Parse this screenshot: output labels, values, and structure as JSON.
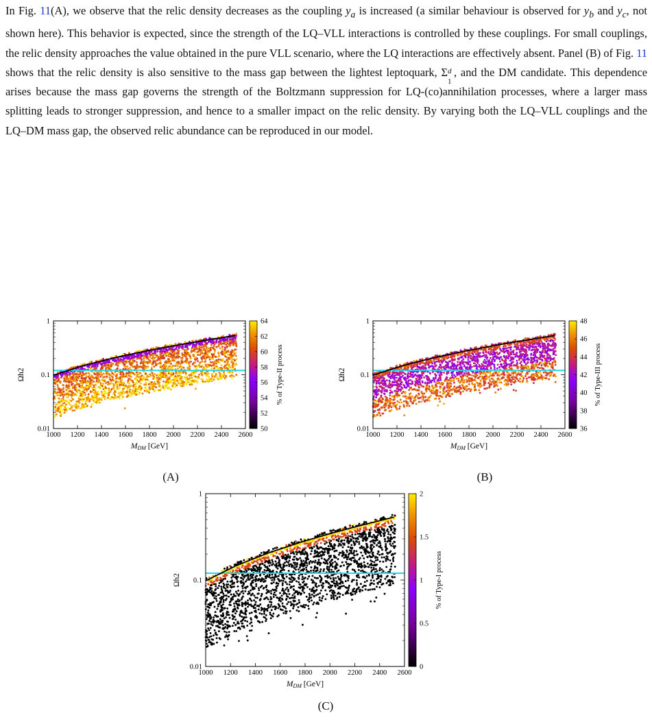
{
  "paragraph": {
    "s1": "In Fig. ",
    "ref1": "11",
    "s2": "(A), we observe that the relic density decreases as the coupling ",
    "ya": "y",
    "ya_sub": "a",
    "s3": " is increased (a similar behaviour is observed for ",
    "yb": "y",
    "yb_sub": "b",
    "s4": " and ",
    "yc": "y",
    "yc_sub": "c",
    "s5": ", not shown here). This behavior is expected, since the strength of the LQ–VLL interactions is controlled by these couplings. For small couplings, the relic density approaches the value obtained in the pure VLL scenario, where the LQ interactions are effectively absent. Panel (B) of Fig. ",
    "ref2": "11",
    "s6": " shows that the relic density is also sensitive to the mass gap between the lightest leptoquark, ",
    "sigma": "Σ",
    "sigma_sup": "d",
    "sigma_sub": "1",
    "s7": ", and the DM candidate. This dependence arises because the mass gap governs the strength of the Boltzmann suppression for LQ-(co)annihilation processes, where a larger mass splitting leads to stronger suppression, and hence to a smaller impact on the relic density. By varying both the LQ–VLL couplings and the LQ–DM mass gap, the observed relic abundance can be reproduced in our model."
  },
  "chart_data": [
    {
      "type": "scatter",
      "panel": "(A)",
      "xlabel_main": "M",
      "xlabel_sub": "DM",
      "xlabel_unit": "[GeV]",
      "ylabel": "Ωh2",
      "xlim": [
        1000,
        2600
      ],
      "ylim": [
        0.01,
        1
      ],
      "yscale": "log",
      "xticks": [
        1000,
        1200,
        1400,
        1600,
        1800,
        2000,
        2200,
        2400,
        2600
      ],
      "yticks": [
        {
          "value": 0.01,
          "label": "0.01"
        },
        {
          "value": 0.1,
          "label": "0.1"
        },
        {
          "value": 1,
          "label": "1"
        }
      ],
      "colorbar": {
        "label": "% of Type-II process",
        "min": 50,
        "max": 64,
        "ticks": [
          50,
          52,
          54,
          56,
          58,
          60,
          62,
          64
        ]
      },
      "upper_curve": {
        "x": [
          1000,
          1250,
          1500,
          1750,
          2000,
          2250,
          2525
        ],
        "y": [
          0.098,
          0.148,
          0.205,
          0.27,
          0.345,
          0.43,
          0.54
        ],
        "color": "#000000"
      },
      "planck_line": {
        "y": 0.12,
        "color": "#22d8e8"
      },
      "scatter": {
        "x_range": [
          1000,
          2525
        ],
        "points": 2600,
        "seed": 7,
        "mode": "A"
      }
    },
    {
      "type": "scatter",
      "panel": "(B)",
      "xlabel_main": "M",
      "xlabel_sub": "DM",
      "xlabel_unit": "[GeV]",
      "ylabel": "Ωh2",
      "xlim": [
        1000,
        2600
      ],
      "ylim": [
        0.01,
        1
      ],
      "yscale": "log",
      "xticks": [
        1000,
        1200,
        1400,
        1600,
        1800,
        2000,
        2200,
        2400,
        2600
      ],
      "yticks": [
        {
          "value": 0.01,
          "label": "0.01"
        },
        {
          "value": 0.1,
          "label": "0.1"
        },
        {
          "value": 1,
          "label": "1"
        }
      ],
      "colorbar": {
        "label": "% of Type-III process",
        "min": 36,
        "max": 48,
        "ticks": [
          36,
          38,
          40,
          42,
          44,
          46,
          48
        ]
      },
      "upper_curve": {
        "x": [
          1000,
          1250,
          1500,
          1750,
          2000,
          2250,
          2525
        ],
        "y": [
          0.098,
          0.148,
          0.205,
          0.27,
          0.345,
          0.43,
          0.54
        ],
        "color": "#000000"
      },
      "planck_line": {
        "y": 0.12,
        "color": "#22d8e8"
      },
      "scatter": {
        "x_range": [
          1000,
          2525
        ],
        "points": 2600,
        "seed": 11,
        "mode": "B"
      }
    },
    {
      "type": "scatter",
      "panel": "(C)",
      "xlabel_main": "M",
      "xlabel_sub": "DM",
      "xlabel_unit": "[GeV]",
      "ylabel": "Ωh2",
      "xlim": [
        1000,
        2600
      ],
      "ylim": [
        0.01,
        1
      ],
      "yscale": "log",
      "xticks": [
        1000,
        1200,
        1400,
        1600,
        1800,
        2000,
        2200,
        2400,
        2600
      ],
      "yticks": [
        {
          "value": 0.01,
          "label": "0.01"
        },
        {
          "value": 0.1,
          "label": "0.1"
        },
        {
          "value": 1,
          "label": "1"
        }
      ],
      "colorbar": {
        "label": "% of Type-I process",
        "min": 0,
        "max": 2,
        "ticks": [
          0,
          0.5,
          1,
          1.5,
          2
        ]
      },
      "upper_curve": {
        "x": [
          1000,
          1250,
          1500,
          1750,
          2000,
          2250,
          2525
        ],
        "y": [
          0.098,
          0.148,
          0.205,
          0.27,
          0.345,
          0.43,
          0.54
        ],
        "color": "#000000"
      },
      "planck_line": {
        "y": 0.12,
        "color": "#22d8e8"
      },
      "scatter": {
        "x_range": [
          1000,
          2525
        ],
        "points": 2600,
        "seed": 23,
        "mode": "C"
      }
    }
  ]
}
